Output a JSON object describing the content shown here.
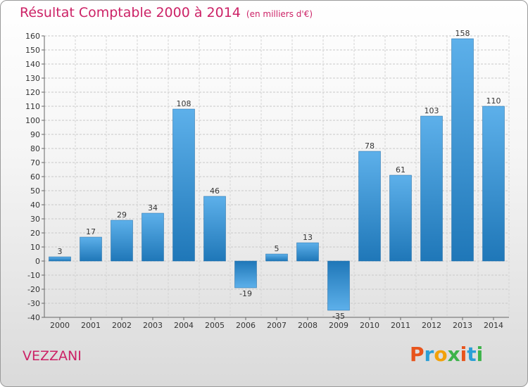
{
  "header": {
    "title": "Résultat Comptable 2000 à 2014",
    "subtitle": "(en milliers d'€)"
  },
  "footer": {
    "commune": "VEZZANI",
    "logo_text": "Proxiti",
    "logo_colors": [
      "#e8541c",
      "#2a9fd6",
      "#f2a10a",
      "#3cb34a",
      "#e8541c",
      "#2a9fd6",
      "#3cb34a"
    ]
  },
  "colors": {
    "title": "#cc2266",
    "bar_dark": "#1f77b8",
    "bar_light": "#5db0ea"
  },
  "chart_data": {
    "type": "bar",
    "title": "Résultat Comptable 2000 à 2014",
    "categories": [
      "2000",
      "2001",
      "2002",
      "2003",
      "2004",
      "2005",
      "2006",
      "2007",
      "2008",
      "2009",
      "2010",
      "2011",
      "2012",
      "2013",
      "2014"
    ],
    "values": [
      3,
      17,
      29,
      34,
      108,
      46,
      -19,
      5,
      13,
      -35,
      78,
      61,
      103,
      158,
      110
    ],
    "ylim": [
      -40,
      160
    ],
    "yticks": [
      -40,
      -30,
      -20,
      -10,
      0,
      10,
      20,
      30,
      40,
      50,
      60,
      70,
      80,
      90,
      100,
      110,
      120,
      130,
      140,
      150,
      160
    ],
    "grid": true,
    "legend": "none"
  }
}
